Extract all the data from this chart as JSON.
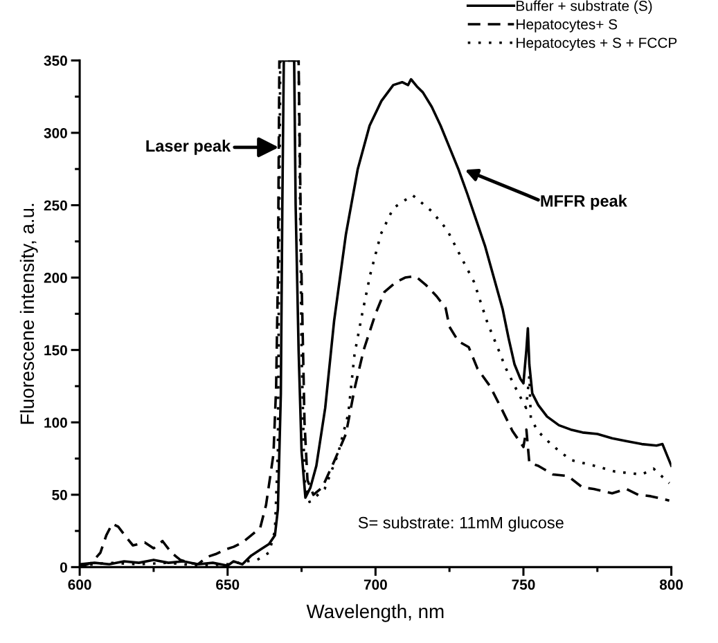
{
  "chart_data": {
    "type": "line",
    "xlabel": "Wavelength, nm",
    "ylabel": "Fluorescene intensity, a.u.",
    "xlim": [
      600,
      800
    ],
    "ylim": [
      0,
      350
    ],
    "xticks": [
      600,
      {
        "value": 625,
        "label": null
      },
      650,
      {
        "value": 675,
        "label": null
      },
      700,
      {
        "value": 725,
        "label": null
      },
      750,
      {
        "value": 775,
        "label": null
      },
      800
    ],
    "yticks": [
      0,
      {
        "value": 25,
        "label": null
      },
      50,
      {
        "value": 75,
        "label": null
      },
      100,
      {
        "value": 125,
        "label": null
      },
      150,
      {
        "value": 175,
        "label": null
      },
      200,
      {
        "value": 225,
        "label": null
      },
      250,
      {
        "value": 275,
        "label": null
      },
      300,
      {
        "value": 325,
        "label": null
      },
      350
    ],
    "grid": false,
    "legend": "top right",
    "marker": "none",
    "series": [
      {
        "name": "Buffer + substrate (S)",
        "color": "#000000",
        "line_style": "solid",
        "x": [
          600,
          605,
          610,
          615,
          620,
          625,
          630,
          635,
          640,
          645,
          650,
          652,
          655,
          658,
          661,
          664,
          666,
          667,
          668,
          668.5,
          669,
          672.5,
          673,
          674,
          675,
          676.3,
          678,
          680,
          683,
          686,
          690,
          694,
          698,
          702,
          706,
          709,
          711,
          712,
          714,
          716,
          719,
          722,
          725,
          728,
          731,
          734,
          737,
          740,
          743,
          745,
          747,
          749,
          750,
          751,
          751.5,
          752,
          753,
          755,
          758,
          762,
          766,
          770,
          775,
          780,
          785,
          790,
          795,
          797,
          800
        ],
        "values": [
          2,
          3,
          2,
          4,
          3,
          5,
          3,
          4,
          2,
          3,
          1,
          4,
          2,
          8,
          12,
          16,
          22,
          40,
          120,
          250,
          350,
          350,
          250,
          150,
          80,
          48,
          55,
          70,
          110,
          170,
          230,
          275,
          305,
          322,
          333,
          335,
          333,
          337,
          332,
          328,
          318,
          305,
          290,
          275,
          258,
          240,
          222,
          200,
          178,
          158,
          140,
          130,
          127,
          150,
          165,
          140,
          120,
          112,
          104,
          98,
          95,
          93,
          92,
          89,
          87,
          85,
          84,
          85,
          70
        ]
      },
      {
        "name": "Hepatocytes+ S",
        "color": "#000000",
        "line_style": "dashed",
        "x": [
          600,
          604,
          607,
          609,
          611,
          613,
          616,
          618,
          622,
          625,
          628,
          631,
          634,
          637,
          640,
          643,
          646,
          649,
          652,
          655,
          658,
          661,
          663,
          665.5,
          666.4,
          667,
          667.5,
          669.5,
          674,
          675,
          676,
          677,
          679,
          682,
          686,
          690,
          693,
          696,
          700,
          703,
          707,
          710,
          713.5,
          717,
          720.7,
          723.7,
          725,
          728,
          731.5,
          734.5,
          738.7,
          742.7,
          746.3,
          750,
          751,
          752,
          755,
          760,
          765,
          770,
          773.8,
          780,
          784.8,
          788.8,
          793,
          799.3
        ],
        "values": [
          0,
          3,
          10,
          22,
          30,
          28,
          20,
          15,
          17,
          13,
          18,
          10,
          5,
          3,
          2,
          7,
          9,
          12,
          14,
          17,
          22,
          27,
          43,
          78,
          124,
          200,
          350,
          350,
          350,
          200,
          100,
          60,
          50,
          55,
          73,
          92,
          124,
          150,
          175,
          190,
          197,
          200,
          201,
          195,
          187,
          179,
          166,
          156,
          152,
          137,
          125,
          109,
          94,
          83,
          95,
          72,
          70,
          64,
          63,
          55,
          54,
          51,
          54,
          50,
          49,
          46
        ]
      },
      {
        "name": "Hepatocytes + S + FCCP",
        "color": "#000000",
        "line_style": "dotted",
        "x": [
          600,
          610,
          620,
          630,
          640,
          650,
          660,
          664,
          666,
          667,
          667.8,
          668.8,
          674,
          675,
          676,
          677.7,
          682.8,
          687.3,
          690.8,
          692.9,
          695.4,
          698.2,
          701.8,
          706,
          712.5,
          718.9,
          724.2,
          728.7,
          733.3,
          737.8,
          742.2,
          743.9,
          747.8,
          750.9,
          752,
          752.5,
          754.8,
          759.8,
          766,
          774,
          781,
          790,
          794,
          799.3
        ],
        "values": [
          1,
          3,
          2,
          3,
          1,
          2,
          5,
          10,
          25,
          80,
          350,
          350,
          350,
          150,
          60,
          45,
          54,
          78,
          106,
          147,
          174,
          202,
          230,
          248,
          257,
          246,
          233,
          215,
          197,
          169,
          147,
          138,
          122,
          110,
          132,
          103,
          94,
          84,
          74,
          70,
          66,
          64,
          68,
          58
        ]
      }
    ],
    "annotations": [
      {
        "text": "Laser peak",
        "x": 667.3,
        "y": 290
      },
      "MFFR peak",
      "S= substrate: 11mM glucose"
    ]
  }
}
